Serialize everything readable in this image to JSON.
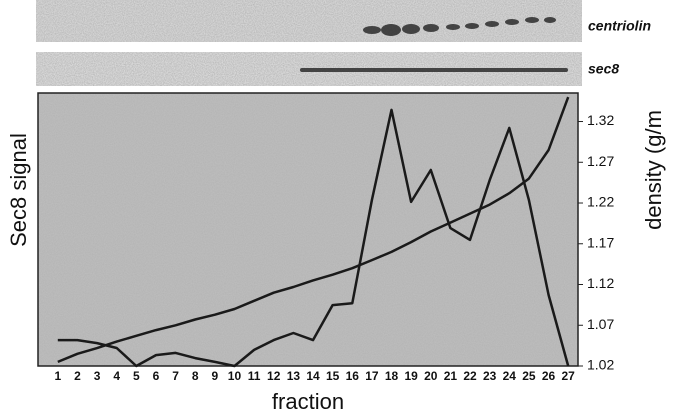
{
  "chart_data": {
    "type": "line",
    "blot_labels": [
      "centriolin",
      "sec8"
    ],
    "y_label": "Sec8 signal",
    "y2_label": "density (g/m",
    "x_label": "fraction",
    "categories": [
      "1",
      "2",
      "3",
      "4",
      "5",
      "6",
      "7",
      "8",
      "9",
      "10",
      "11",
      "12",
      "13",
      "14",
      "15",
      "16",
      "17",
      "18",
      "19",
      "20",
      "21",
      "22",
      "23",
      "24",
      "25",
      "26",
      "27"
    ],
    "ylim": [
      0,
      100
    ],
    "y2lim": [
      1.02,
      1.355
    ],
    "y2ticks": [
      1.02,
      1.07,
      1.12,
      1.17,
      1.22,
      1.27,
      1.32
    ],
    "series": [
      {
        "color": "#1a1a1a",
        "values": [
          9.5,
          9.5,
          8.4,
          6.6,
          0,
          4,
          4.8,
          2.9,
          1.5,
          0,
          5.9,
          9.5,
          12.1,
          9.5,
          22.3,
          23,
          60.8,
          93.8,
          60.1,
          71.8,
          50.5,
          46.2,
          68.1,
          87.2,
          60.8,
          26,
          0
        ]
      },
      {
        "color": "#1a1a1a",
        "axis": "y2",
        "values": [
          1.025,
          1.035,
          1.042,
          1.05,
          1.057,
          1.064,
          1.07,
          1.077,
          1.083,
          1.09,
          1.1,
          1.11,
          1.117,
          1.125,
          1.132,
          1.14,
          1.15,
          1.16,
          1.172,
          1.185,
          1.196,
          1.207,
          1.218,
          1.232,
          1.25,
          1.285,
          1.35
        ]
      }
    ]
  }
}
